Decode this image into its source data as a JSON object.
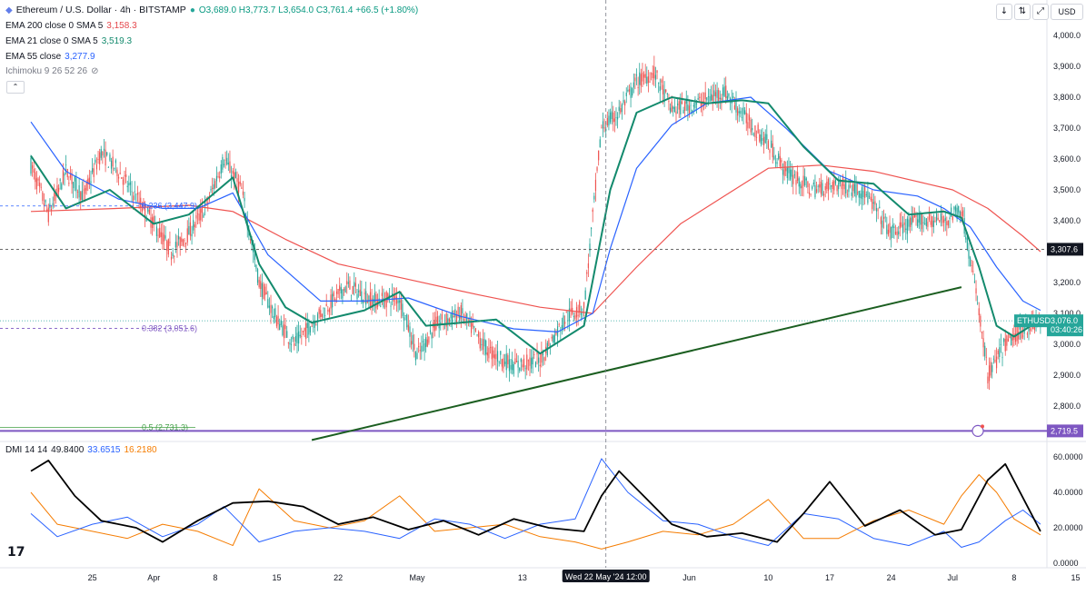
{
  "header": {
    "symbol": "Ethereum / U.S. Dollar · 4h · BITSTAMP",
    "ohlc_text": "O3,689.0  H3,773.7  L3,654.0  C3,761.4  +66.5 (+1.80%)",
    "currency": "USD"
  },
  "indicators": {
    "ema200": {
      "label": "EMA 200 close 0 SMA 5",
      "value": "3,158.3",
      "color": "#e5484d"
    },
    "ema21": {
      "label": "EMA 21 close 0 SMA 5",
      "value": "3,519.3",
      "color": "#138a6d"
    },
    "ema55": {
      "label": "EMA 55 close",
      "value": "3,277.9",
      "color": "#2962ff"
    },
    "ichimoku": {
      "label": "Ichimoku 9 26 52 26"
    },
    "dmi": {
      "label": "DMI 14 14",
      "v1": "49.8400",
      "v2": "33.6515",
      "v3": "16.2180"
    }
  },
  "colors": {
    "up": "#26a69a",
    "down": "#ef5350",
    "trendline": "#1b5e20",
    "fib": "#7e57c2",
    "adx": "#000000",
    "di_plus": "#2962ff",
    "di_minus": "#f57c00"
  },
  "icons": [
    "eye-off-icon",
    "arrow-down-icon",
    "arrow-up-down-icon",
    "expand-icon",
    "tradingview-logo-icon",
    "alert-icon"
  ],
  "chart_data": [
    {
      "type": "candlestick",
      "title": "Ethereum / U.S. Dollar · 4h · BITSTAMP",
      "ylim": [
        2700,
        4050
      ],
      "y_ticks": [
        "4,000.0",
        "3,900.0",
        "3,800.0",
        "3,700.0",
        "3,600.0",
        "3,500.0",
        "3,400.0",
        "3,300.0",
        "3,200.0",
        "3,100.0",
        "3,000.0",
        "2,900.0",
        "2,800.0"
      ],
      "y_tick_values": [
        4000,
        3900,
        3800,
        3700,
        3600,
        3500,
        3400,
        3300,
        3200,
        3100,
        3000,
        2900,
        2800
      ],
      "x_ticks": [
        "25",
        "Apr",
        "8",
        "15",
        "22",
        "May",
        "13",
        "Jun",
        "10",
        "17",
        "24",
        "Jul",
        "8",
        "15"
      ],
      "x_tick_dates": [
        "2024-03-25",
        "2024-04-01",
        "2024-04-08",
        "2024-04-15",
        "2024-04-22",
        "2024-05-01",
        "2024-05-13",
        "2024-06-01",
        "2024-06-10",
        "2024-06-17",
        "2024-06-24",
        "2024-07-01",
        "2024-07-08",
        "2024-07-15"
      ],
      "crosshair_label": "Wed 22 May '24   12:00",
      "crosshair_date": "2024-05-22T12:00",
      "price_keypoints": {
        "dates": [
          "2024-03-18",
          "2024-03-20",
          "2024-03-22",
          "2024-03-24",
          "2024-03-26",
          "2024-03-28",
          "2024-04-01",
          "2024-04-03",
          "2024-04-05",
          "2024-04-07",
          "2024-04-09",
          "2024-04-11",
          "2024-04-13",
          "2024-04-15",
          "2024-04-17",
          "2024-04-20",
          "2024-04-23",
          "2024-04-26",
          "2024-04-29",
          "2024-05-01",
          "2024-05-03",
          "2024-05-06",
          "2024-05-09",
          "2024-05-12",
          "2024-05-15",
          "2024-05-18",
          "2024-05-20",
          "2024-05-22",
          "2024-05-24",
          "2024-05-26",
          "2024-05-28",
          "2024-05-30",
          "2024-06-02",
          "2024-06-05",
          "2024-06-08",
          "2024-06-10",
          "2024-06-12",
          "2024-06-15",
          "2024-06-18",
          "2024-06-21",
          "2024-06-24",
          "2024-06-27",
          "2024-06-30",
          "2024-07-02",
          "2024-07-04",
          "2024-07-05",
          "2024-07-07",
          "2024-07-09",
          "2024-07-11"
        ],
        "values": [
          3580,
          3420,
          3560,
          3480,
          3620,
          3560,
          3390,
          3300,
          3360,
          3450,
          3600,
          3500,
          3200,
          3080,
          3000,
          3100,
          3190,
          3140,
          3150,
          2960,
          3060,
          3100,
          2980,
          2930,
          2950,
          3090,
          3120,
          3700,
          3750,
          3850,
          3880,
          3760,
          3780,
          3820,
          3710,
          3650,
          3560,
          3500,
          3520,
          3490,
          3360,
          3400,
          3400,
          3440,
          3110,
          2900,
          3000,
          3050,
          3076
        ]
      },
      "series": [
        {
          "name": "EMA 21",
          "dates": [
            "2024-03-18",
            "2024-03-22",
            "2024-03-27",
            "2024-04-01",
            "2024-04-05",
            "2024-04-10",
            "2024-04-13",
            "2024-04-16",
            "2024-04-19",
            "2024-04-25",
            "2024-04-29",
            "2024-05-02",
            "2024-05-06",
            "2024-05-10",
            "2024-05-15",
            "2024-05-20",
            "2024-05-23",
            "2024-05-26",
            "2024-05-30",
            "2024-06-03",
            "2024-06-07",
            "2024-06-10",
            "2024-06-14",
            "2024-06-18",
            "2024-06-22",
            "2024-06-26",
            "2024-06-30",
            "2024-07-02",
            "2024-07-04",
            "2024-07-06",
            "2024-07-08",
            "2024-07-11"
          ],
          "values": [
            3610,
            3440,
            3500,
            3390,
            3420,
            3540,
            3260,
            3120,
            3070,
            3110,
            3170,
            3060,
            3070,
            3080,
            2970,
            3060,
            3500,
            3750,
            3800,
            3780,
            3790,
            3780,
            3640,
            3530,
            3520,
            3420,
            3430,
            3410,
            3250,
            3060,
            3025,
            3080
          ]
        },
        {
          "name": "EMA 55",
          "dates": [
            "2024-03-18",
            "2024-03-22",
            "2024-03-28",
            "2024-04-02",
            "2024-04-06",
            "2024-04-10",
            "2024-04-14",
            "2024-04-20",
            "2024-04-25",
            "2024-04-30",
            "2024-05-06",
            "2024-05-12",
            "2024-05-17",
            "2024-05-21",
            "2024-05-23",
            "2024-05-26",
            "2024-05-30",
            "2024-06-03",
            "2024-06-08",
            "2024-06-12",
            "2024-06-17",
            "2024-06-22",
            "2024-06-27",
            "2024-06-30",
            "2024-07-03",
            "2024-07-06",
            "2024-07-09",
            "2024-07-11"
          ],
          "values": [
            3720,
            3560,
            3470,
            3440,
            3440,
            3490,
            3290,
            3140,
            3140,
            3150,
            3090,
            3050,
            3040,
            3100,
            3310,
            3570,
            3710,
            3780,
            3800,
            3700,
            3560,
            3500,
            3480,
            3440,
            3380,
            3250,
            3140,
            3110
          ]
        },
        {
          "name": "EMA 200",
          "dates": [
            "2024-03-18",
            "2024-03-28",
            "2024-04-05",
            "2024-04-10",
            "2024-04-16",
            "2024-04-22",
            "2024-04-30",
            "2024-05-08",
            "2024-05-15",
            "2024-05-21",
            "2024-05-26",
            "2024-05-31",
            "2024-06-05",
            "2024-06-10",
            "2024-06-16",
            "2024-06-22",
            "2024-06-28",
            "2024-07-01",
            "2024-07-05",
            "2024-07-09",
            "2024-07-11"
          ],
          "values": [
            3430,
            3440,
            3450,
            3430,
            3340,
            3260,
            3210,
            3160,
            3120,
            3100,
            3250,
            3390,
            3480,
            3570,
            3580,
            3560,
            3520,
            3500,
            3440,
            3350,
            3300
          ]
        }
      ],
      "horizontal_levels": [
        {
          "label": "0.236 (3,447.9)",
          "value": 3447.9
        },
        {
          "label": "0.382 (3,051.6)",
          "value": 3051.6
        },
        {
          "label": "0.5 (2,731.3)",
          "value": 2731.3
        },
        {
          "label": "3,307.6",
          "value": 3307.6
        },
        {
          "label": "2,719.5",
          "value": 2719.5
        }
      ],
      "trendline": {
        "from": [
          "2024-04-19",
          2690
        ],
        "to": [
          "2024-07-02",
          3185
        ]
      },
      "last_price": {
        "symbol": "ETHUSD",
        "value": "3,076.0",
        "countdown": "03:40:26"
      }
    },
    {
      "type": "line",
      "title": "DMI 14 14",
      "ylim": [
        0,
        65
      ],
      "y_ticks": [
        "60.0000",
        "40.0000",
        "20.0000",
        "0.0000"
      ],
      "y_tick_values": [
        60,
        40,
        20,
        0
      ],
      "series": [
        {
          "name": "ADX",
          "dates": [
            "2024-03-18",
            "2024-03-20",
            "2024-03-23",
            "2024-03-26",
            "2024-03-30",
            "2024-04-02",
            "2024-04-06",
            "2024-04-10",
            "2024-04-14",
            "2024-04-18",
            "2024-04-22",
            "2024-04-26",
            "2024-04-30",
            "2024-05-04",
            "2024-05-08",
            "2024-05-12",
            "2024-05-16",
            "2024-05-20",
            "2024-05-22",
            "2024-05-24",
            "2024-05-26",
            "2024-05-30",
            "2024-06-03",
            "2024-06-07",
            "2024-06-11",
            "2024-06-14",
            "2024-06-17",
            "2024-06-21",
            "2024-06-25",
            "2024-06-29",
            "2024-07-02",
            "2024-07-05",
            "2024-07-07",
            "2024-07-09",
            "2024-07-11"
          ],
          "values": [
            52,
            58,
            38,
            24,
            20,
            12,
            24,
            34,
            35,
            32,
            22,
            26,
            19,
            24,
            16,
            25,
            20,
            18,
            38,
            52,
            42,
            22,
            15,
            17,
            12,
            28,
            46,
            21,
            30,
            16,
            19,
            47,
            56,
            37,
            18
          ]
        },
        {
          "name": "DI+",
          "dates": [
            "2024-03-18",
            "2024-03-21",
            "2024-03-25",
            "2024-03-29",
            "2024-04-02",
            "2024-04-06",
            "2024-04-09",
            "2024-04-13",
            "2024-04-17",
            "2024-04-21",
            "2024-04-25",
            "2024-04-29",
            "2024-05-03",
            "2024-05-07",
            "2024-05-11",
            "2024-05-15",
            "2024-05-19",
            "2024-05-22",
            "2024-05-25",
            "2024-05-29",
            "2024-06-02",
            "2024-06-06",
            "2024-06-10",
            "2024-06-14",
            "2024-06-18",
            "2024-06-22",
            "2024-06-26",
            "2024-06-30",
            "2024-07-02",
            "2024-07-04",
            "2024-07-07",
            "2024-07-09",
            "2024-07-11"
          ],
          "values": [
            28,
            15,
            22,
            26,
            15,
            22,
            32,
            12,
            18,
            20,
            18,
            14,
            25,
            22,
            14,
            22,
            25,
            59,
            40,
            24,
            22,
            15,
            10,
            28,
            25,
            14,
            10,
            18,
            9,
            12,
            24,
            30,
            22
          ]
        },
        {
          "name": "DI-",
          "dates": [
            "2024-03-18",
            "2024-03-21",
            "2024-03-25",
            "2024-03-29",
            "2024-04-02",
            "2024-04-06",
            "2024-04-10",
            "2024-04-13",
            "2024-04-17",
            "2024-04-21",
            "2024-04-25",
            "2024-04-29",
            "2024-05-03",
            "2024-05-07",
            "2024-05-11",
            "2024-05-15",
            "2024-05-19",
            "2024-05-22",
            "2024-05-25",
            "2024-05-29",
            "2024-06-02",
            "2024-06-06",
            "2024-06-10",
            "2024-06-14",
            "2024-06-18",
            "2024-06-22",
            "2024-06-26",
            "2024-06-30",
            "2024-07-02",
            "2024-07-04",
            "2024-07-06",
            "2024-07-08",
            "2024-07-11"
          ],
          "values": [
            40,
            22,
            18,
            14,
            22,
            18,
            10,
            42,
            24,
            20,
            24,
            38,
            18,
            20,
            22,
            15,
            12,
            8,
            12,
            18,
            16,
            22,
            36,
            14,
            14,
            24,
            30,
            22,
            38,
            50,
            40,
            25,
            16
          ]
        }
      ]
    }
  ]
}
